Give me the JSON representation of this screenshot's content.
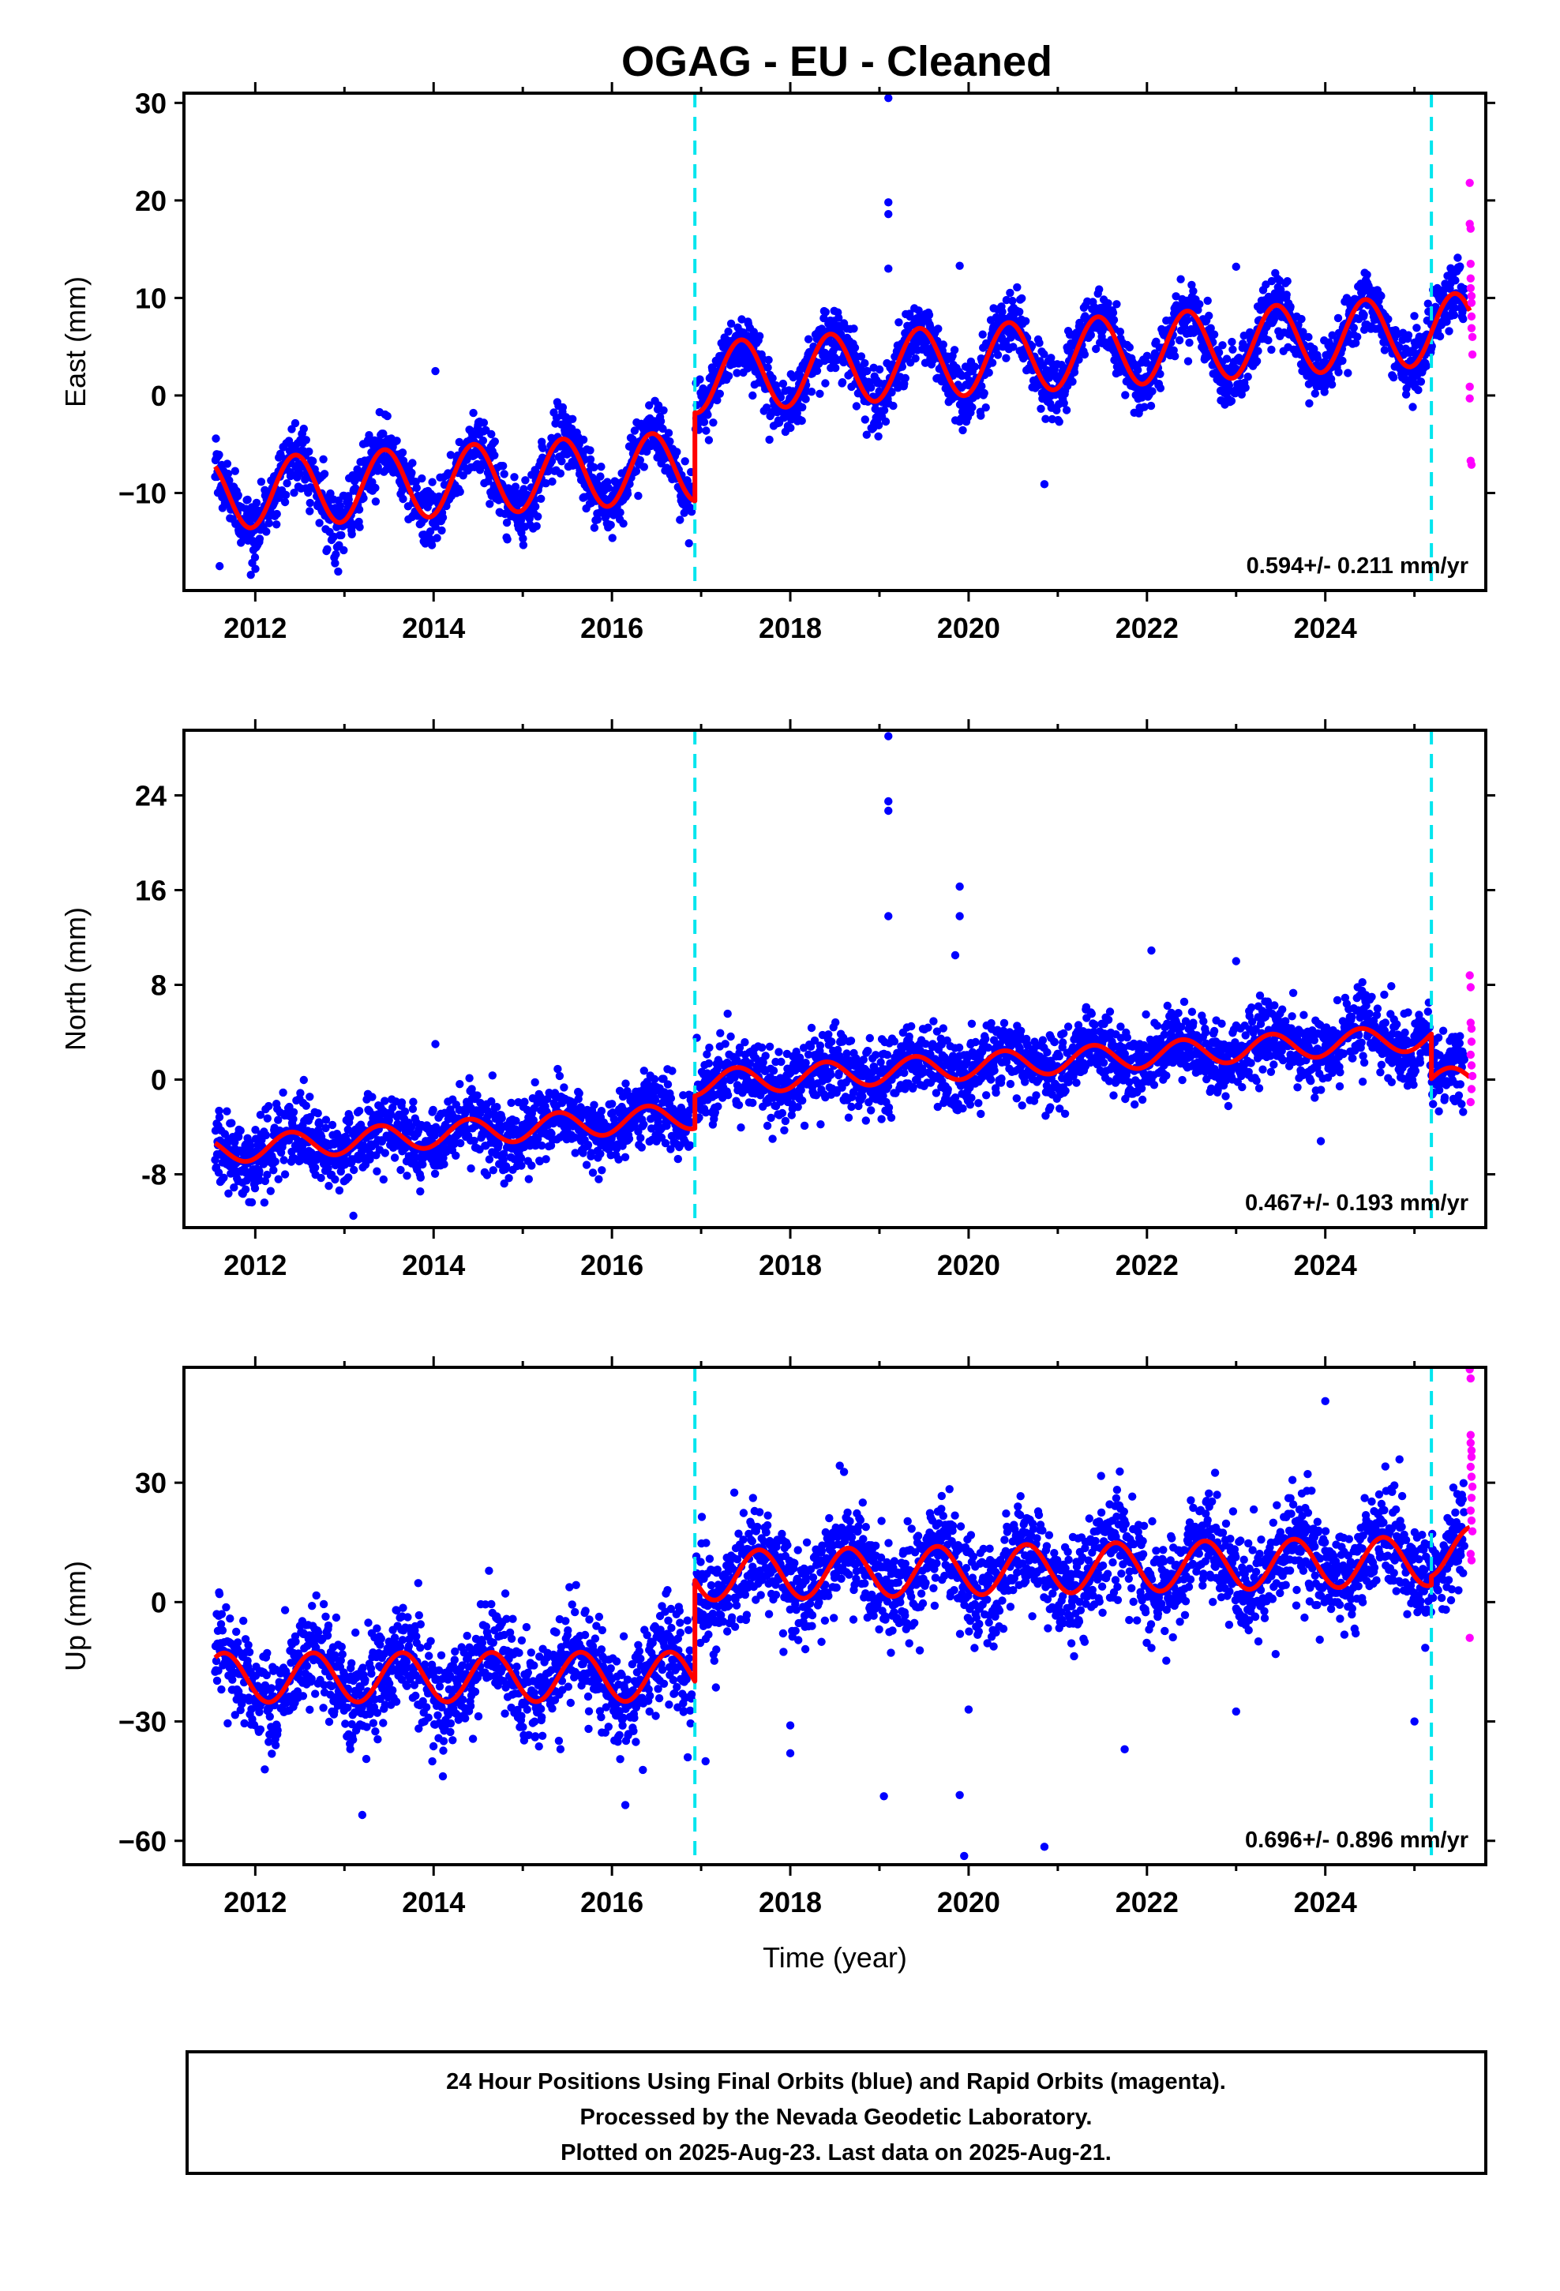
{
  "title": "OGAG  - EU - Cleaned",
  "colors": {
    "final": "#0000ff",
    "rapid": "#ff00ff",
    "model": "#ff0000",
    "break": "#00e5ee",
    "frame": "#000000"
  },
  "chart_data": [
    {
      "type": "scatter",
      "ylabel": "East (mm)",
      "xlim": [
        2011.2,
        2025.8
      ],
      "ylim": [
        -20,
        31
      ],
      "yticks": [
        -10,
        0,
        10,
        20,
        30
      ],
      "ytick_labels": [
        "−10",
        "0",
        "10",
        "20",
        "30"
      ],
      "xticks": [
        2012,
        2014,
        2016,
        2018,
        2020,
        2022,
        2024
      ],
      "xtick_labels": [
        "2012",
        "2014",
        "2016",
        "2018",
        "2020",
        "2022",
        "2024"
      ],
      "xlabel": "",
      "rate": "0.594+/- 0.211 mm/yr",
      "breaks": [
        2016.93,
        2025.19
      ],
      "model": {
        "segments": [
          {
            "start": 2011.55,
            "end": 2016.93,
            "base0": -10.2,
            "slope": 0.55
          },
          {
            "start": 2016.93,
            "end": 2025.19,
            "base0": 1.8,
            "slope": 0.59
          },
          {
            "start": 2025.19,
            "end": 2025.62,
            "base0": 6.7,
            "slope": 0.59
          }
        ],
        "amplitude": 3.6,
        "phase_peak": 0.45
      },
      "scatter_sd": 1.6,
      "outliers": [
        [
          2019.1,
          30.5
        ],
        [
          2019.1,
          19.8
        ],
        [
          2019.1,
          18.6
        ],
        [
          2019.1,
          13.0
        ],
        [
          2014.02,
          2.5
        ],
        [
          2019.9,
          13.3
        ],
        [
          2023.0,
          13.2
        ],
        [
          2020.85,
          -9.1
        ],
        [
          2011.95,
          -18.4
        ],
        [
          2011.6,
          -17.5
        ]
      ],
      "rapid": [
        [
          2025.62,
          21.8
        ],
        [
          2025.62,
          17.6
        ],
        [
          2025.63,
          17.1
        ],
        [
          2025.63,
          13.5
        ],
        [
          2025.63,
          12.0
        ],
        [
          2025.63,
          11.0
        ],
        [
          2025.64,
          10.2
        ],
        [
          2025.64,
          9.5
        ],
        [
          2025.64,
          8.1
        ],
        [
          2025.64,
          6.9
        ],
        [
          2025.65,
          6.0
        ],
        [
          2025.65,
          4.2
        ],
        [
          2025.62,
          0.9
        ],
        [
          2025.62,
          -0.3
        ],
        [
          2025.63,
          -6.7
        ],
        [
          2025.64,
          -7.1
        ]
      ]
    },
    {
      "type": "scatter",
      "ylabel": "North (mm)",
      "xlim": [
        2011.2,
        2025.8
      ],
      "ylim": [
        -12.5,
        29.5
      ],
      "yticks": [
        -8,
        0,
        8,
        16,
        24
      ],
      "ytick_labels": [
        "-8",
        "0",
        "8",
        "16",
        "24"
      ],
      "xticks": [
        2012,
        2014,
        2016,
        2018,
        2020,
        2022,
        2024
      ],
      "xtick_labels": [
        "2012",
        "2014",
        "2016",
        "2018",
        "2020",
        "2022",
        "2024"
      ],
      "xlabel": "",
      "rate": "0.467+/- 0.193 mm/yr",
      "breaks": [
        2016.93,
        2025.19
      ],
      "model": {
        "segments": [
          {
            "start": 2011.55,
            "end": 2016.93,
            "base0": -6.0,
            "slope": 0.55
          },
          {
            "start": 2016.93,
            "end": 2025.19,
            "base0": -0.3,
            "slope": 0.47
          },
          {
            "start": 2025.19,
            "end": 2025.62,
            "base0": -0.2,
            "slope": 0.47
          }
        ],
        "amplitude": 1.1,
        "phase_peak": 0.4
      },
      "scatter_sd": 1.5,
      "outliers": [
        [
          2019.1,
          29.0
        ],
        [
          2019.1,
          23.5
        ],
        [
          2019.1,
          22.7
        ],
        [
          2019.1,
          13.8
        ],
        [
          2019.9,
          16.3
        ],
        [
          2019.9,
          13.8
        ],
        [
          2019.85,
          10.5
        ],
        [
          2022.05,
          10.9
        ],
        [
          2023.0,
          10.0
        ],
        [
          2013.1,
          -11.5
        ],
        [
          2014.02,
          3.0
        ],
        [
          2023.95,
          -5.2
        ]
      ],
      "rapid": [
        [
          2025.62,
          8.8
        ],
        [
          2025.63,
          7.8
        ],
        [
          2025.63,
          4.8
        ],
        [
          2025.64,
          4.3
        ],
        [
          2025.64,
          3.2
        ],
        [
          2025.63,
          2.1
        ],
        [
          2025.64,
          1.2
        ],
        [
          2025.65,
          0.3
        ],
        [
          2025.64,
          -0.8
        ],
        [
          2025.63,
          -1.9
        ]
      ]
    },
    {
      "type": "scatter",
      "ylabel": "Up (mm)",
      "xlim": [
        2011.2,
        2025.8
      ],
      "ylim": [
        -66,
        59
      ],
      "yticks": [
        -60,
        -30,
        0,
        30
      ],
      "ytick_labels": [
        "−60",
        "−30",
        "0",
        "30"
      ],
      "xticks": [
        2012,
        2014,
        2016,
        2018,
        2020,
        2022,
        2024
      ],
      "xtick_labels": [
        "2012",
        "2014",
        "2016",
        "2018",
        "2020",
        "2022",
        "2024"
      ],
      "xlabel": "Time (year)",
      "rate": "0.696+/- 0.896 mm/yr",
      "breaks": [
        2016.93,
        2025.19
      ],
      "model": {
        "segments": [
          {
            "start": 2011.55,
            "end": 2016.93,
            "base0": -19.0,
            "slope": 0.05
          },
          {
            "start": 2016.93,
            "end": 2025.19,
            "base0": 6.6,
            "slope": 0.45
          },
          {
            "start": 2025.19,
            "end": 2025.62,
            "base0": 12.5,
            "slope": 0.45
          }
        ],
        "amplitude": 6.2,
        "phase_peak": 0.65
      },
      "scatter_sd": 6.5,
      "outliers": [
        [
          2024.0,
          50.5
        ],
        [
          2013.2,
          -53.5
        ],
        [
          2016.15,
          -51.0
        ],
        [
          2019.05,
          -48.8
        ],
        [
          2019.9,
          -48.5
        ],
        [
          2019.95,
          -63.8
        ],
        [
          2020.85,
          -61.5
        ],
        [
          2018.0,
          -38.0
        ],
        [
          2018.0,
          -31.0
        ],
        [
          2021.75,
          -37.0
        ],
        [
          2023.0,
          -27.5
        ],
        [
          2017.05,
          -40.0
        ],
        [
          2016.85,
          -39.0
        ],
        [
          2018.35,
          -10.0
        ],
        [
          2020.0,
          -27.0
        ],
        [
          2025.0,
          -30.0
        ]
      ],
      "rapid": [
        [
          2025.62,
          58.5
        ],
        [
          2025.63,
          56.2
        ],
        [
          2025.63,
          42.0
        ],
        [
          2025.63,
          40.0
        ],
        [
          2025.64,
          38.1
        ],
        [
          2025.64,
          36.5
        ],
        [
          2025.63,
          34.0
        ],
        [
          2025.64,
          31.5
        ],
        [
          2025.65,
          29.0
        ],
        [
          2025.64,
          26.2
        ],
        [
          2025.63,
          23.0
        ],
        [
          2025.64,
          20.5
        ],
        [
          2025.65,
          17.8
        ],
        [
          2025.63,
          12.1
        ],
        [
          2025.64,
          10.5
        ],
        [
          2025.62,
          -9.0
        ]
      ]
    }
  ],
  "footer": {
    "lines": [
      "24 Hour Positions Using Final Orbits (blue) and Rapid Orbits (magenta).",
      "Processed by the Nevada Geodetic Laboratory.",
      "Plotted on 2025-Aug-23. Last data on 2025-Aug-21."
    ]
  }
}
